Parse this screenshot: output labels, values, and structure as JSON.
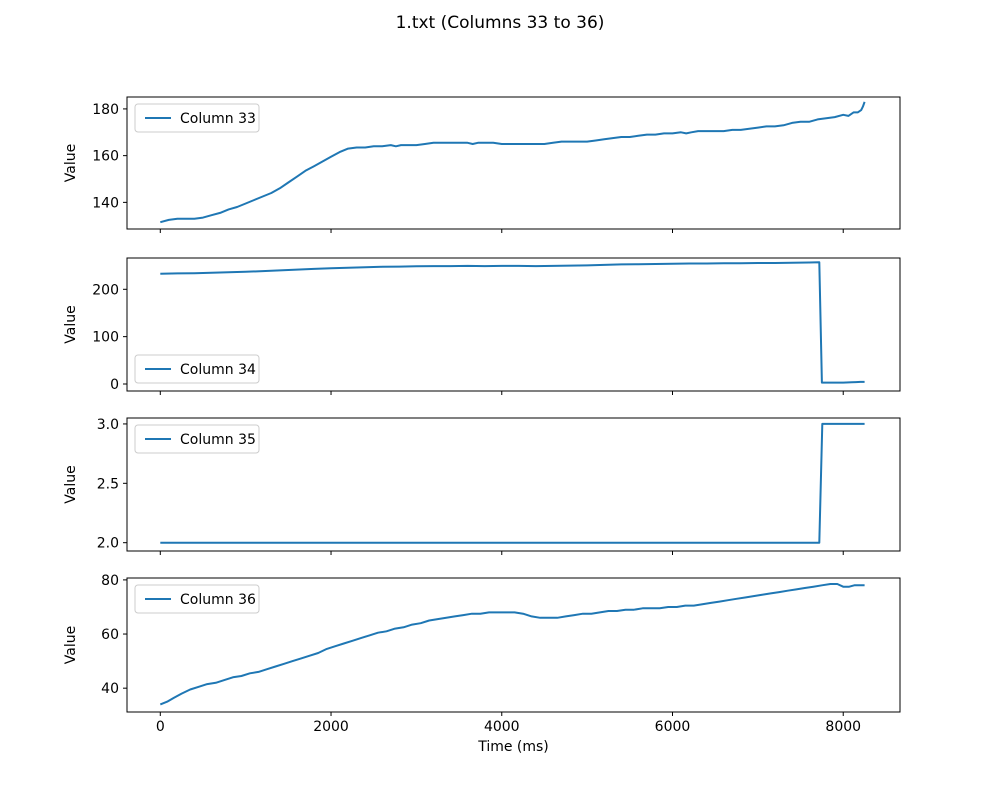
{
  "figure": {
    "title": "1.txt (Columns 33 to 36)",
    "background": "#ffffff",
    "line_color": "#1f77b4",
    "frame_color": "#000000",
    "legend_border_color": "#cccccc"
  },
  "x_axis": {
    "label": "Time (ms)",
    "ticks": [
      0,
      2000,
      4000,
      6000,
      8000
    ],
    "tick_labels": [
      "0",
      "2000",
      "4000",
      "6000",
      "8000"
    ],
    "lim": [
      -390,
      8665
    ]
  },
  "chart_data": [
    {
      "type": "line",
      "series": "Column 33",
      "ylabel": "Value",
      "color": "#1f77b4",
      "legend_loc": "upper-left",
      "ylim": [
        128.6,
        185.1
      ],
      "ytick_values": [
        140,
        160,
        180
      ],
      "ytick_labels": [
        "140",
        "160",
        "180"
      ],
      "grid": false,
      "points": [
        [
          0,
          131.5
        ],
        [
          100,
          132.5
        ],
        [
          200,
          133
        ],
        [
          300,
          133
        ],
        [
          400,
          133
        ],
        [
          500,
          133.5
        ],
        [
          600,
          134.5
        ],
        [
          700,
          135.5
        ],
        [
          800,
          137
        ],
        [
          900,
          138
        ],
        [
          1000,
          139.5
        ],
        [
          1100,
          141
        ],
        [
          1200,
          142.5
        ],
        [
          1300,
          144
        ],
        [
          1400,
          146
        ],
        [
          1500,
          148.5
        ],
        [
          1600,
          151
        ],
        [
          1700,
          153.5
        ],
        [
          1800,
          155.5
        ],
        [
          1900,
          157.5
        ],
        [
          2000,
          159.5
        ],
        [
          2100,
          161.5
        ],
        [
          2200,
          163
        ],
        [
          2300,
          163.5
        ],
        [
          2400,
          163.5
        ],
        [
          2500,
          164
        ],
        [
          2600,
          164
        ],
        [
          2700,
          164.5
        ],
        [
          2760,
          164
        ],
        [
          2820,
          164.5
        ],
        [
          2900,
          164.5
        ],
        [
          3000,
          164.5
        ],
        [
          3100,
          165
        ],
        [
          3200,
          165.5
        ],
        [
          3300,
          165.5
        ],
        [
          3400,
          165.5
        ],
        [
          3500,
          165.5
        ],
        [
          3600,
          165.5
        ],
        [
          3660,
          165
        ],
        [
          3720,
          165.5
        ],
        [
          3800,
          165.5
        ],
        [
          3900,
          165.5
        ],
        [
          4000,
          165
        ],
        [
          4100,
          165
        ],
        [
          4200,
          165
        ],
        [
          4300,
          165
        ],
        [
          4400,
          165
        ],
        [
          4500,
          165
        ],
        [
          4600,
          165.5
        ],
        [
          4700,
          166
        ],
        [
          4800,
          166
        ],
        [
          4900,
          166
        ],
        [
          5000,
          166
        ],
        [
          5100,
          166.5
        ],
        [
          5200,
          167
        ],
        [
          5300,
          167.5
        ],
        [
          5400,
          168
        ],
        [
          5500,
          168
        ],
        [
          5600,
          168.5
        ],
        [
          5700,
          169
        ],
        [
          5800,
          169
        ],
        [
          5900,
          169.5
        ],
        [
          6000,
          169.5
        ],
        [
          6100,
          170
        ],
        [
          6160,
          169.5
        ],
        [
          6220,
          170
        ],
        [
          6300,
          170.5
        ],
        [
          6400,
          170.5
        ],
        [
          6500,
          170.5
        ],
        [
          6600,
          170.5
        ],
        [
          6700,
          171
        ],
        [
          6800,
          171
        ],
        [
          6900,
          171.5
        ],
        [
          7000,
          172
        ],
        [
          7100,
          172.5
        ],
        [
          7200,
          172.5
        ],
        [
          7300,
          173
        ],
        [
          7400,
          174
        ],
        [
          7500,
          174.5
        ],
        [
          7600,
          174.5
        ],
        [
          7700,
          175.5
        ],
        [
          7800,
          176
        ],
        [
          7900,
          176.5
        ],
        [
          8000,
          177.5
        ],
        [
          8060,
          177
        ],
        [
          8120,
          178.5
        ],
        [
          8170,
          178.5
        ],
        [
          8210,
          179.5
        ],
        [
          8230,
          181
        ],
        [
          8250,
          183
        ]
      ]
    },
    {
      "type": "line",
      "series": "Column 34",
      "ylabel": "Value",
      "color": "#1f77b4",
      "legend_loc": "lower-left",
      "ylim": [
        -14.8,
        266.1
      ],
      "ytick_values": [
        0,
        100,
        200
      ],
      "ytick_labels": [
        "0",
        "100",
        "200"
      ],
      "grid": false,
      "points": [
        [
          0,
          233
        ],
        [
          200,
          233.5
        ],
        [
          400,
          234
        ],
        [
          600,
          235
        ],
        [
          800,
          236
        ],
        [
          1000,
          237
        ],
        [
          1200,
          238.5
        ],
        [
          1400,
          240
        ],
        [
          1600,
          241.5
        ],
        [
          1800,
          243
        ],
        [
          2000,
          244.5
        ],
        [
          2200,
          245.5
        ],
        [
          2400,
          246.5
        ],
        [
          2600,
          247.5
        ],
        [
          2800,
          248
        ],
        [
          3000,
          248.5
        ],
        [
          3200,
          249
        ],
        [
          3400,
          249
        ],
        [
          3600,
          249.5
        ],
        [
          3800,
          249
        ],
        [
          4000,
          249.5
        ],
        [
          4200,
          249.5
        ],
        [
          4400,
          249
        ],
        [
          4600,
          249.5
        ],
        [
          4800,
          250
        ],
        [
          5000,
          250.5
        ],
        [
          5200,
          251.5
        ],
        [
          5400,
          252.5
        ],
        [
          5600,
          253
        ],
        [
          5800,
          253.5
        ],
        [
          6000,
          254
        ],
        [
          6200,
          254.5
        ],
        [
          6400,
          254.5
        ],
        [
          6600,
          255
        ],
        [
          6800,
          255
        ],
        [
          7000,
          255.5
        ],
        [
          7200,
          255.5
        ],
        [
          7400,
          256
        ],
        [
          7600,
          256.5
        ],
        [
          7720,
          257
        ],
        [
          7750,
          3
        ],
        [
          7800,
          3
        ],
        [
          7900,
          3
        ],
        [
          8000,
          3
        ],
        [
          8100,
          3.5
        ],
        [
          8150,
          4
        ],
        [
          8200,
          4.5
        ],
        [
          8250,
          4.5
        ]
      ]
    },
    {
      "type": "line",
      "series": "Column 35",
      "ylabel": "Value",
      "color": "#1f77b4",
      "legend_loc": "upper-left",
      "ylim": [
        1.93,
        3.05
      ],
      "ytick_values": [
        2.0,
        2.5,
        3.0
      ],
      "ytick_labels": [
        "2.0",
        "2.5",
        "3.0"
      ],
      "grid": false,
      "points": [
        [
          0,
          2
        ],
        [
          1000,
          2
        ],
        [
          2000,
          2
        ],
        [
          3000,
          2
        ],
        [
          4000,
          2
        ],
        [
          5000,
          2
        ],
        [
          6000,
          2
        ],
        [
          7000,
          2
        ],
        [
          7720,
          2
        ],
        [
          7755,
          3
        ],
        [
          8000,
          3
        ],
        [
          8250,
          3
        ]
      ]
    },
    {
      "type": "line",
      "series": "Column 36",
      "ylabel": "Value",
      "color": "#1f77b4",
      "legend_loc": "upper-left",
      "ylim": [
        31.2,
        80.7
      ],
      "ytick_values": [
        40,
        60,
        80
      ],
      "ytick_labels": [
        "40",
        "60",
        "80"
      ],
      "grid": false,
      "points": [
        [
          0,
          34
        ],
        [
          80,
          35
        ],
        [
          160,
          36.5
        ],
        [
          250,
          38
        ],
        [
          350,
          39.5
        ],
        [
          450,
          40.5
        ],
        [
          550,
          41.5
        ],
        [
          650,
          42
        ],
        [
          750,
          43
        ],
        [
          850,
          44
        ],
        [
          950,
          44.5
        ],
        [
          1050,
          45.5
        ],
        [
          1150,
          46
        ],
        [
          1250,
          47
        ],
        [
          1350,
          48
        ],
        [
          1450,
          49
        ],
        [
          1550,
          50
        ],
        [
          1650,
          51
        ],
        [
          1750,
          52
        ],
        [
          1850,
          53
        ],
        [
          1950,
          54.5
        ],
        [
          2050,
          55.5
        ],
        [
          2150,
          56.5
        ],
        [
          2250,
          57.5
        ],
        [
          2350,
          58.5
        ],
        [
          2450,
          59.5
        ],
        [
          2550,
          60.5
        ],
        [
          2650,
          61
        ],
        [
          2750,
          62
        ],
        [
          2850,
          62.5
        ],
        [
          2950,
          63.5
        ],
        [
          3050,
          64
        ],
        [
          3150,
          65
        ],
        [
          3250,
          65.5
        ],
        [
          3350,
          66
        ],
        [
          3450,
          66.5
        ],
        [
          3550,
          67
        ],
        [
          3650,
          67.5
        ],
        [
          3750,
          67.5
        ],
        [
          3850,
          68
        ],
        [
          3950,
          68
        ],
        [
          4050,
          68
        ],
        [
          4150,
          68
        ],
        [
          4250,
          67.5
        ],
        [
          4350,
          66.5
        ],
        [
          4450,
          66
        ],
        [
          4550,
          66
        ],
        [
          4650,
          66
        ],
        [
          4750,
          66.5
        ],
        [
          4850,
          67
        ],
        [
          4950,
          67.5
        ],
        [
          5050,
          67.5
        ],
        [
          5150,
          68
        ],
        [
          5250,
          68.5
        ],
        [
          5350,
          68.5
        ],
        [
          5450,
          69
        ],
        [
          5550,
          69
        ],
        [
          5650,
          69.5
        ],
        [
          5750,
          69.5
        ],
        [
          5850,
          69.5
        ],
        [
          5950,
          70
        ],
        [
          6050,
          70
        ],
        [
          6150,
          70.5
        ],
        [
          6250,
          70.5
        ],
        [
          6350,
          71
        ],
        [
          6450,
          71.5
        ],
        [
          6550,
          72
        ],
        [
          6650,
          72.5
        ],
        [
          6750,
          73
        ],
        [
          6850,
          73.5
        ],
        [
          6950,
          74
        ],
        [
          7050,
          74.5
        ],
        [
          7150,
          75
        ],
        [
          7250,
          75.5
        ],
        [
          7350,
          76
        ],
        [
          7450,
          76.5
        ],
        [
          7550,
          77
        ],
        [
          7650,
          77.5
        ],
        [
          7750,
          78
        ],
        [
          7850,
          78.5
        ],
        [
          7930,
          78.5
        ],
        [
          8000,
          77.5
        ],
        [
          8070,
          77.5
        ],
        [
          8130,
          78
        ],
        [
          8250,
          78
        ]
      ]
    }
  ]
}
